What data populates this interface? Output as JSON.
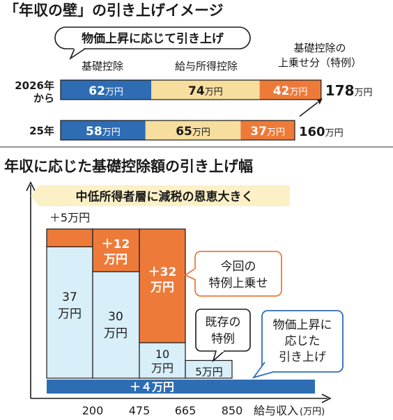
{
  "colors": {
    "blue": "#2E6DB4",
    "tan": "#F6DE9E",
    "orange": "#EE7A3A",
    "light_blue": "#D8EEF8",
    "pale_yellow": "#FCF0C6",
    "dark": "#1A1A1A"
  },
  "chart_data": [
    {
      "type": "bar",
      "orientation": "horizontal-stacked",
      "title": "「年収の壁」の引き上げイメージ",
      "banner": "物価上昇に応じて引き上げ",
      "unit": "万円",
      "legend_labels": {
        "basic": "基礎控除",
        "salary": "給与所得控除",
        "special": "基礎控除の\n上乗せ分（特例）"
      },
      "rows": [
        {
          "label": "2026年\nから",
          "basic": 62,
          "salary": 74,
          "special": 42,
          "total": 178,
          "basic_text": "62",
          "salary_text": "74",
          "special_text": "42",
          "total_text": "178"
        },
        {
          "label": "25年",
          "basic": 58,
          "salary": 65,
          "special": 37,
          "total": 160,
          "basic_text": "58",
          "salary_text": "65",
          "special_text": "37",
          "total_text": "160"
        }
      ]
    },
    {
      "type": "bar",
      "orientation": "vertical-stacked",
      "title": "年収に応じた基礎控除額の引き上げ幅",
      "banner": "中低所得者層に減税の恩恵大きく",
      "xlabel": "給与収入",
      "xlabel_unit": "(万円)",
      "x_ticks": [
        "200",
        "475",
        "665",
        "850"
      ],
      "unit_suffix": "万円",
      "ylim": [
        0,
        50
      ],
      "base_band": {
        "value": 4,
        "label": "＋４万円"
      },
      "segments": [
        {
          "band": "≤200",
          "existing": 37,
          "new": 5,
          "existing_text": "37\n万円",
          "new_text": "＋5万円"
        },
        {
          "band": "200-475",
          "existing": 30,
          "new": 12,
          "existing_text": "30\n万円",
          "new_text": "＋12\n万円"
        },
        {
          "band": "475-665",
          "existing": 10,
          "new": 32,
          "existing_text": "10\n万円",
          "new_text": "＋32\n万円"
        },
        {
          "band": "665-850",
          "existing": 5,
          "new": 0,
          "existing_text": "5万円",
          "new_text": ""
        }
      ],
      "callouts": {
        "special_new": "今回の\n特例上乗せ",
        "existing": "既存の\n特例",
        "inflation": "物価上昇に\n応じた\n引き上げ"
      }
    }
  ]
}
